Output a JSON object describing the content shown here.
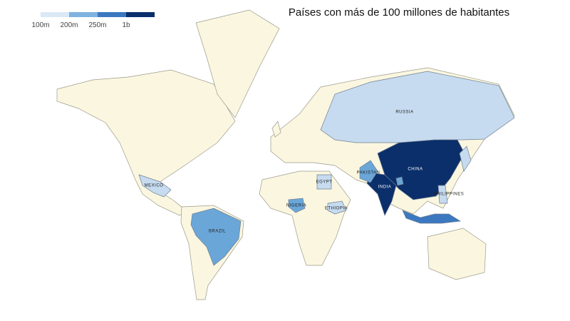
{
  "title": "Países con más de 100 millones de habitantes",
  "legend": {
    "colors": [
      "#dbe8f6",
      "#7fb3df",
      "#3b78c0",
      "#0b2f6b"
    ],
    "labels": [
      "100m",
      "200m",
      "250m",
      "1b"
    ]
  },
  "countries": [
    {
      "label": "RUSSIA",
      "color": "#c6dbef"
    },
    {
      "label": "CHINA",
      "color": "#0b2f6b"
    },
    {
      "label": "INDIA",
      "color": "#0b2f6b"
    },
    {
      "label": "BRAZIL",
      "color": "#6aa6d8"
    },
    {
      "label": "MEXICO",
      "color": "#c6dbef"
    },
    {
      "label": "NIGERIA",
      "color": "#6aa6d8"
    },
    {
      "label": "EGYPT",
      "color": "#c6dbef"
    },
    {
      "label": "ETHIOPIA",
      "color": "#c6dbef"
    },
    {
      "label": "PAKISTAN",
      "color": "#6aa6d8"
    },
    {
      "label": "PHILIPPINES",
      "color": "#c6dbef"
    },
    {
      "color": "#3b78c0"
    },
    {
      "color": "#c6dbef"
    },
    {
      "color": "#6aa6d8"
    }
  ]
}
